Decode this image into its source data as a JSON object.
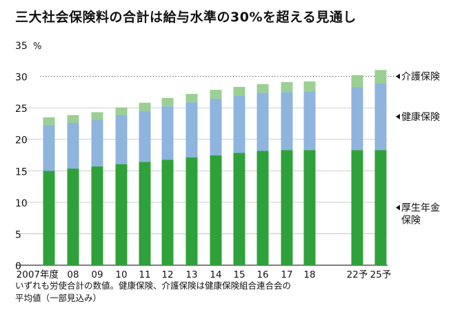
{
  "chart_data": {
    "type": "bar",
    "stacked": true,
    "title": "三大社会保険料の合計は給与水準の30%を超える見通し",
    "ylabel": "%",
    "ylim": [
      0,
      35
    ],
    "yticks": [
      0,
      5,
      10,
      15,
      20,
      25,
      30,
      35
    ],
    "reference_line": 30,
    "categories": [
      "2007年度",
      "08",
      "09",
      "10",
      "11",
      "12",
      "13",
      "14",
      "15",
      "16",
      "17",
      "18",
      "22予",
      "25予"
    ],
    "series": [
      {
        "name": "厚生年金保険",
        "label": "厚生年金\n保険",
        "color": "#2fa13a",
        "values": [
          14.99,
          15.35,
          15.7,
          16.06,
          16.41,
          16.77,
          17.12,
          17.47,
          17.83,
          18.18,
          18.3,
          18.3,
          18.3,
          18.3
        ]
      },
      {
        "name": "健康保険",
        "label": "健康保険",
        "color": "#8fb4de",
        "values": [
          7.3,
          7.3,
          7.4,
          7.8,
          8.1,
          8.5,
          8.8,
          9.0,
          9.1,
          9.2,
          9.2,
          9.3,
          10.0,
          10.6
        ]
      },
      {
        "name": "介護保険",
        "label": "介護保険",
        "color": "#9bcf93",
        "values": [
          1.2,
          1.2,
          1.2,
          1.2,
          1.3,
          1.3,
          1.3,
          1.4,
          1.4,
          1.4,
          1.6,
          1.6,
          1.9,
          2.1
        ]
      }
    ]
  },
  "notes": {
    "line1": "いずれも労使合計の数値。健康保険、介護保険は健康保険組合連合会の",
    "line2": "平均値（一部見込み）"
  }
}
